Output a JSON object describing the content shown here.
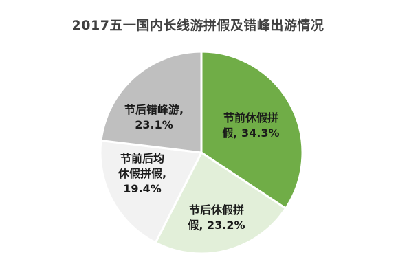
{
  "chart_data": {
    "type": "pie",
    "title": "2017五一国内长线游拼假及错峰出游情况",
    "slices": [
      {
        "label_lines": [
          "节前休假拼",
          "假, 34.3%"
        ],
        "category": "节前休假拼假",
        "value": 34.3,
        "color": "#70ad47",
        "label_color": "#1a1a1a"
      },
      {
        "label_lines": [
          "节后休假拼",
          "假, 23.2%"
        ],
        "category": "节后休假拼假",
        "value": 23.2,
        "color": "#e2efd9",
        "label_color": "#1a1a1a"
      },
      {
        "label_lines": [
          "节前后均",
          "休假拼假,",
          "19.4%"
        ],
        "category": "节前后均休假拼假",
        "value": 19.4,
        "color": "#f2f2f2",
        "label_color": "#1a1a1a"
      },
      {
        "label_lines": [
          "节后错峰游,",
          "23.1%"
        ],
        "category": "节后错峰游",
        "value": 23.1,
        "color": "#bfbfbf",
        "label_color": "#1a1a1a"
      }
    ],
    "start_angle_deg": 0,
    "direction": "clockwise",
    "legend": "none"
  }
}
